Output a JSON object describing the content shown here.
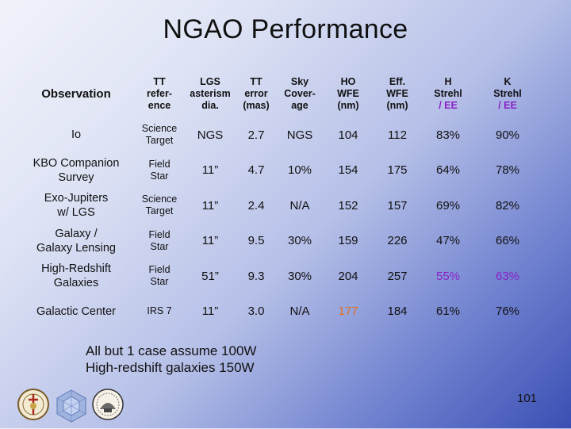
{
  "title": "NGAO Performance",
  "table": {
    "headers": [
      {
        "lines": [
          "Observation"
        ]
      },
      {
        "lines": [
          "TT",
          "refer-",
          "ence"
        ]
      },
      {
        "lines": [
          "LGS",
          "asterism",
          "dia."
        ]
      },
      {
        "lines": [
          "TT",
          "error",
          "(mas)"
        ]
      },
      {
        "lines": [
          "Sky",
          "Cover-",
          "age"
        ]
      },
      {
        "lines": [
          "HO",
          "WFE",
          "(nm)"
        ]
      },
      {
        "lines": [
          "Eff.",
          "WFE",
          "(nm)"
        ]
      },
      {
        "lines": [
          "H",
          "Strehl",
          "/ EE"
        ],
        "purple_line": 2
      },
      {
        "lines": [
          "K",
          "Strehl",
          "/ EE"
        ],
        "purple_line": 2
      }
    ],
    "rows": [
      {
        "obs": [
          "Io"
        ],
        "ref": [
          "Science",
          "Target"
        ],
        "lgs": "NGS",
        "tt": "2.7",
        "sky": "NGS",
        "ho": "104",
        "eff": "112",
        "h": "83%",
        "k": "90%"
      },
      {
        "obs": [
          "KBO Companion",
          "Survey"
        ],
        "ref": [
          "Field",
          "Star"
        ],
        "lgs": "11”",
        "tt": "4.7",
        "sky": "10%",
        "ho": "154",
        "eff": "175",
        "h": "64%",
        "k": "78%"
      },
      {
        "obs": [
          "Exo-Jupiters",
          "w/ LGS"
        ],
        "ref": [
          "Science",
          "Target"
        ],
        "lgs": "11”",
        "tt": "2.4",
        "sky": "N/A",
        "ho": "152",
        "eff": "157",
        "h": "69%",
        "k": "82%"
      },
      {
        "obs": [
          "Galaxy /",
          "Galaxy Lensing"
        ],
        "ref": [
          "Field",
          "Star"
        ],
        "lgs": "11”",
        "tt": "9.5",
        "sky": "30%",
        "ho": "159",
        "eff": "226",
        "h": "47%",
        "k": "66%"
      },
      {
        "obs": [
          "High-Redshift",
          "Galaxies"
        ],
        "ref": [
          "Field",
          "Star"
        ],
        "lgs": "51”",
        "tt": "9.3",
        "sky": "30%",
        "ho": "204",
        "eff": "257",
        "h": "55%",
        "k": "63%",
        "h_color": "purple",
        "k_color": "purple"
      },
      {
        "obs": [
          "Galactic Center"
        ],
        "ref": [
          "IRS 7"
        ],
        "lgs": "11”",
        "tt": "3.0",
        "sky": "N/A",
        "ho": "177",
        "eff": "184",
        "h": "61%",
        "k": "76%",
        "ho_color": "orange"
      }
    ]
  },
  "notes": [
    "All but 1 case assume 100W",
    "High-redshift galaxies 150W"
  ],
  "page_number": "101",
  "colors": {
    "purple": "#8a22c8",
    "orange": "#e0701e",
    "background_light": "#f1f3fb",
    "background_dark": "#3b4fb4"
  },
  "logos": [
    {
      "icon": "university-seal-icon"
    },
    {
      "icon": "segmented-mirror-icon"
    },
    {
      "icon": "observatory-seal-icon"
    }
  ]
}
